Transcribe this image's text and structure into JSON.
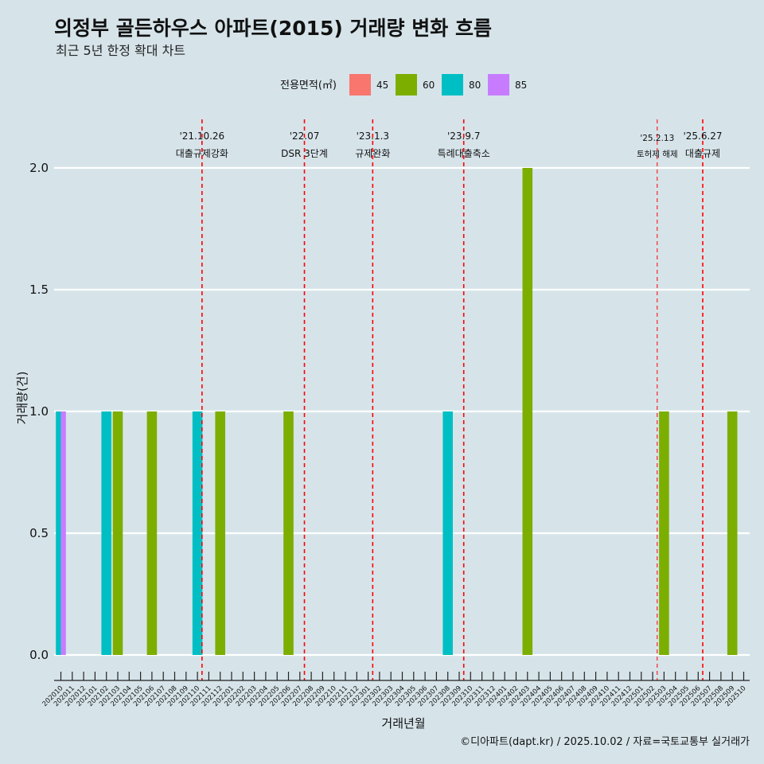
{
  "title": "의정부 골든하우스 아파트(2015) 거래량 변화 흐름",
  "subtitle": "최근 5년 한정 확대 차트",
  "caption": "©디아파트(dapt.kr) / 2025.10.02 / 자료=국토교통부 실거래가",
  "colors": {
    "45": "#f8766d",
    "60": "#7cae00",
    "80": "#00bfc4",
    "85": "#c77cff",
    "event_line": "#ff0000",
    "grid": "#ffffff",
    "background": "#d6e4ea"
  },
  "chart_data": {
    "type": "bar",
    "title": "의정부 골든하우스 아파트(2015) 거래량 변화 흐름",
    "xlabel": "거래년월",
    "ylabel": "거래량(건)",
    "ylim": [
      -0.08,
      2.2
    ],
    "yticks": [
      "0.0",
      "0.5",
      "1.0",
      "1.5",
      "2.0"
    ],
    "legend": {
      "title": "전용면적(㎡)",
      "position": "top",
      "entries": [
        "45",
        "60",
        "80",
        "85"
      ]
    },
    "categories": [
      "202010",
      "202011",
      "202012",
      "202101",
      "202102",
      "202103",
      "202104",
      "202105",
      "202106",
      "202107",
      "202108",
      "202109",
      "202110",
      "202111",
      "202112",
      "202201",
      "202202",
      "202203",
      "202204",
      "202205",
      "202206",
      "202207",
      "202208",
      "202209",
      "202210",
      "202211",
      "202212",
      "202301",
      "202302",
      "202303",
      "202304",
      "202305",
      "202306",
      "202307",
      "202308",
      "202309",
      "202310",
      "202311",
      "202312",
      "202401",
      "202402",
      "202403",
      "202404",
      "202405",
      "202406",
      "202407",
      "202408",
      "202409",
      "202410",
      "202411",
      "202412",
      "202501",
      "202502",
      "202503",
      "202504",
      "202505",
      "202506",
      "202507",
      "202508",
      "202509",
      "202510"
    ],
    "bars": [
      {
        "month": "202010",
        "area": "80",
        "value": 1
      },
      {
        "month": "202010",
        "area": "85",
        "value": 1
      },
      {
        "month": "202102",
        "area": "80",
        "value": 1
      },
      {
        "month": "202103",
        "area": "60",
        "value": 1
      },
      {
        "month": "202106",
        "area": "60",
        "value": 1
      },
      {
        "month": "202110",
        "area": "80",
        "value": 1
      },
      {
        "month": "202112",
        "area": "60",
        "value": 1
      },
      {
        "month": "202206",
        "area": "60",
        "value": 1
      },
      {
        "month": "202308",
        "area": "80",
        "value": 1
      },
      {
        "month": "202403",
        "area": "60",
        "value": 2
      },
      {
        "month": "202503",
        "area": "60",
        "value": 1
      },
      {
        "month": "202509",
        "area": "60",
        "value": 1
      }
    ],
    "events": [
      {
        "pos": 12.4,
        "date": "'21.10.26",
        "label": "대출규제강화",
        "thin": false
      },
      {
        "pos": 21.4,
        "date": "'22.07",
        "label": "DSR 3단계",
        "thin": false
      },
      {
        "pos": 27.4,
        "date": "'23.1.3",
        "label": "규제완화",
        "thin": false
      },
      {
        "pos": 35.4,
        "date": "'23.9.7",
        "label": "특례대출축소",
        "thin": false
      },
      {
        "pos": 52.4,
        "date": "'25.2.13",
        "label": "토허제 해제",
        "thin": true
      },
      {
        "pos": 56.4,
        "date": "'25.6.27",
        "label": "대출규제",
        "thin": false
      }
    ]
  }
}
